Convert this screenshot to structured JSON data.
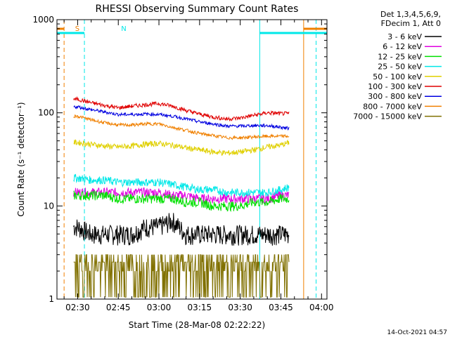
{
  "chart_data": {
    "type": "line",
    "title": "RHESSI Observing Summary Count Rates",
    "xlabel": "Start Time (28-Mar-08 02:22:22)",
    "ylabel": "Count Rate (s⁻¹ detector⁻¹)",
    "y_scale": "log",
    "ylim": [
      1,
      1000
    ],
    "xlim": [
      "02:22",
      "04:02"
    ],
    "y_ticks": [
      "1",
      "10",
      "100",
      "1000"
    ],
    "x_ticks": [
      {
        "label": "02:30",
        "minute": 150
      },
      {
        "label": "02:45",
        "minute": 165
      },
      {
        "label": "03:00",
        "minute": 180
      },
      {
        "label": "03:15",
        "minute": 195
      },
      {
        "label": "03:30",
        "minute": 210
      },
      {
        "label": "03:45",
        "minute": 225
      },
      {
        "label": "04:00",
        "minute": 240
      }
    ],
    "legend": {
      "placement": "right",
      "header": [
        "Det 1,3,4,5,6,9,",
        "FDecim 1, Att 0"
      ]
    },
    "x": [
      "02:30",
      "02:35",
      "02:40",
      "02:45",
      "02:50",
      "02:55",
      "03:00",
      "03:05",
      "03:10",
      "03:15",
      "03:20",
      "03:25",
      "03:30",
      "03:35",
      "03:40",
      "03:45",
      "03:48"
    ],
    "series": [
      {
        "name": "3 - 6 keV",
        "color": "#000000",
        "values": [
          6,
          5,
          5,
          5,
          5,
          6,
          6,
          7,
          5,
          5,
          5,
          5,
          5,
          5,
          5,
          5,
          5
        ]
      },
      {
        "name": "6 - 12 keV",
        "color": "#e000e0",
        "values": [
          14,
          14,
          14,
          14,
          14,
          14,
          14,
          13,
          13,
          12,
          12,
          12,
          12,
          12,
          12,
          13,
          13
        ]
      },
      {
        "name": "12 - 25 keV",
        "color": "#00e000",
        "values": [
          13,
          13,
          13,
          12,
          12,
          12,
          12,
          12,
          11,
          11,
          10,
          10,
          10,
          11,
          11,
          12,
          12
        ]
      },
      {
        "name": "25 - 50 keV",
        "color": "#00e8e8",
        "values": [
          20,
          19,
          19,
          18,
          18,
          18,
          18,
          17,
          16,
          15,
          15,
          14,
          14,
          14,
          14,
          15,
          16
        ]
      },
      {
        "name": "50 - 100 keV",
        "color": "#e0d000",
        "values": [
          48,
          46,
          44,
          43,
          44,
          46,
          47,
          45,
          42,
          40,
          38,
          37,
          38,
          40,
          43,
          45,
          48
        ]
      },
      {
        "name": "100 - 300 keV",
        "color": "#e00000",
        "values": [
          140,
          128,
          120,
          113,
          118,
          122,
          126,
          118,
          106,
          97,
          90,
          86,
          88,
          94,
          100,
          98,
          98
        ]
      },
      {
        "name": "300 - 800 keV",
        "color": "#0000e0",
        "values": [
          116,
          108,
          102,
          96,
          96,
          97,
          96,
          92,
          86,
          80,
          76,
          72,
          72,
          73,
          73,
          70,
          68
        ]
      },
      {
        "name": "800 - 7000 keV",
        "color": "#f08000",
        "values": [
          92,
          84,
          78,
          74,
          74,
          76,
          76,
          70,
          65,
          60,
          57,
          54,
          54,
          55,
          56,
          56,
          56
        ]
      },
      {
        "name": "7000 - 15000 keV",
        "color": "#807000",
        "values": [
          2,
          2,
          1.5,
          1.8,
          2,
          2.5,
          2,
          1.5,
          1.5,
          2,
          2,
          2,
          2,
          2,
          2,
          2,
          2
        ]
      }
    ],
    "markers": [
      {
        "label": "S",
        "color": "#f08000",
        "minute": 148,
        "x_end": 148
      },
      {
        "label": "N",
        "color": "#00e8e8",
        "minute": 165,
        "x_end": 165
      }
    ],
    "footer": "14-Oct-2021 04:57"
  }
}
